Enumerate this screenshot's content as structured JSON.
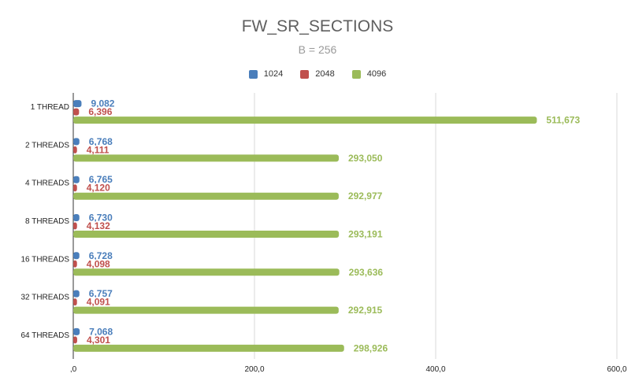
{
  "chart_data": {
    "type": "bar",
    "orientation": "horizontal",
    "title": "FW_SR_SECTIONS",
    "subtitle": "B = 256",
    "xlabel": "",
    "ylabel": "",
    "xlim": [
      0,
      600000
    ],
    "x_ticks": [
      0,
      200000,
      400000,
      600000
    ],
    "x_tick_labels": [
      ",0",
      "200,0",
      "400,0",
      "600,0"
    ],
    "grid": true,
    "legend_position": "top",
    "categories": [
      "1 THREAD",
      "2 THREADS",
      "4 THREADS",
      "8 THREADS",
      "16 THREADS",
      "32 THREADS",
      "64 THREADS"
    ],
    "series": [
      {
        "name": "1024",
        "color": "#4a7ebb",
        "values": [
          9082,
          6768,
          6765,
          6730,
          6728,
          6757,
          7068
        ],
        "labels": [
          "9,082",
          "6,768",
          "6,765",
          "6,730",
          "6,728",
          "6,757",
          "7,068"
        ]
      },
      {
        "name": "2048",
        "color": "#c0504d",
        "values": [
          6396,
          4111,
          4120,
          4132,
          4098,
          4091,
          4301
        ],
        "labels": [
          "6,396",
          "4,111",
          "4,120",
          "4,132",
          "4,098",
          "4,091",
          "4,301"
        ]
      },
      {
        "name": "4096",
        "color": "#9bbb59",
        "values": [
          511673,
          293050,
          292977,
          293191,
          293636,
          292915,
          298926
        ],
        "labels": [
          "511,673",
          "293,050",
          "292,977",
          "293,191",
          "293,636",
          "292,915",
          "298,926"
        ]
      }
    ]
  }
}
